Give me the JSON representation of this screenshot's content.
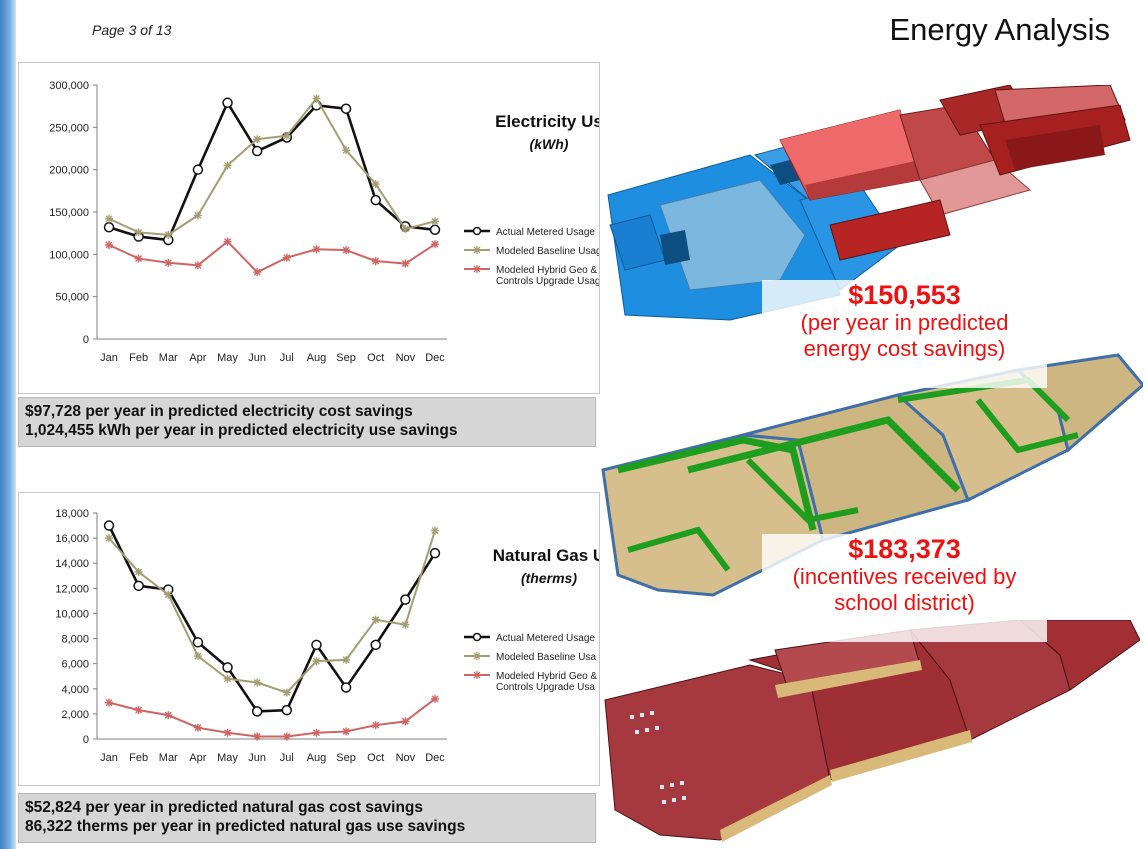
{
  "page_label": "Page 3 of 13",
  "title": "Energy Analysis",
  "colors": {
    "actual": "#111111",
    "baseline": "#a49d72",
    "hybrid": "#cf6464",
    "savings_text": "#ee1111",
    "summary_bg": "#d6d6d6"
  },
  "chart_data": [
    {
      "type": "line",
      "title": "Electricity Us",
      "subtitle": "(kWh)",
      "categories": [
        "Jan",
        "Feb",
        "Mar",
        "Apr",
        "May",
        "Jun",
        "Jul",
        "Aug",
        "Sep",
        "Oct",
        "Nov",
        "Dec"
      ],
      "ylim": [
        0,
        300000
      ],
      "yticks": [
        "0",
        "50,000",
        "100,000",
        "150,000",
        "200,000",
        "250,000",
        "300,000"
      ],
      "series": [
        {
          "name": "Actual Metered Usage",
          "marker": "circle",
          "values": [
            132000,
            121000,
            117000,
            200000,
            279000,
            222000,
            238000,
            276000,
            272000,
            164000,
            133000,
            129000
          ]
        },
        {
          "name": "Modeled Baseline Usag",
          "marker": "star",
          "values": [
            142000,
            126000,
            123000,
            146000,
            205000,
            236000,
            240000,
            284000,
            223000,
            183000,
            130000,
            139000
          ]
        },
        {
          "name": "Modeled Hybrid Geo & Controls Upgrade Usag",
          "marker": "star",
          "values": [
            111000,
            95000,
            90000,
            87000,
            115000,
            79000,
            96000,
            106000,
            105000,
            92000,
            89000,
            112000
          ]
        }
      ],
      "legend_position": "right",
      "summary": [
        "$97,728 per year in predicted electricity cost savings",
        "1,024,455 kWh per year in predicted electricity use savings"
      ]
    },
    {
      "type": "line",
      "title": "Natural Gas U",
      "subtitle": "(therms)",
      "categories": [
        "Jan",
        "Feb",
        "Mar",
        "Apr",
        "May",
        "Jun",
        "Jul",
        "Aug",
        "Sep",
        "Oct",
        "Nov",
        "Dec"
      ],
      "ylim": [
        0,
        18000
      ],
      "yticks": [
        "0",
        "2,000",
        "4,000",
        "6,000",
        "8,000",
        "10,000",
        "12,000",
        "14,000",
        "16,000",
        "18,000"
      ],
      "series": [
        {
          "name": "Actual Metered Usage",
          "marker": "circle",
          "values": [
            17000,
            12200,
            11900,
            7700,
            5700,
            2200,
            2300,
            7500,
            4100,
            7500,
            11100,
            14800
          ]
        },
        {
          "name": "Modeled Baseline Usa",
          "marker": "star",
          "values": [
            16000,
            13300,
            11500,
            6600,
            4800,
            4500,
            3700,
            6200,
            6300,
            9500,
            9100,
            16600
          ]
        },
        {
          "name": "Modeled Hybrid Geo & Controls Upgrade Usa",
          "marker": "star",
          "values": [
            2900,
            2300,
            1900,
            900,
            500,
            200,
            200,
            500,
            600,
            1100,
            1400,
            3200
          ]
        }
      ],
      "legend_position": "right",
      "summary": [
        "$52,824 per year in predicted natural gas cost savings",
        "86,322 therms per year in predicted natural gas use savings"
      ]
    }
  ],
  "savings": [
    {
      "amount": "$150,553",
      "caption_lines": [
        "(per year in predicted",
        "energy cost savings)"
      ]
    },
    {
      "amount": "$183,373",
      "caption_lines": [
        "(incentives received by",
        "school district)"
      ]
    }
  ]
}
